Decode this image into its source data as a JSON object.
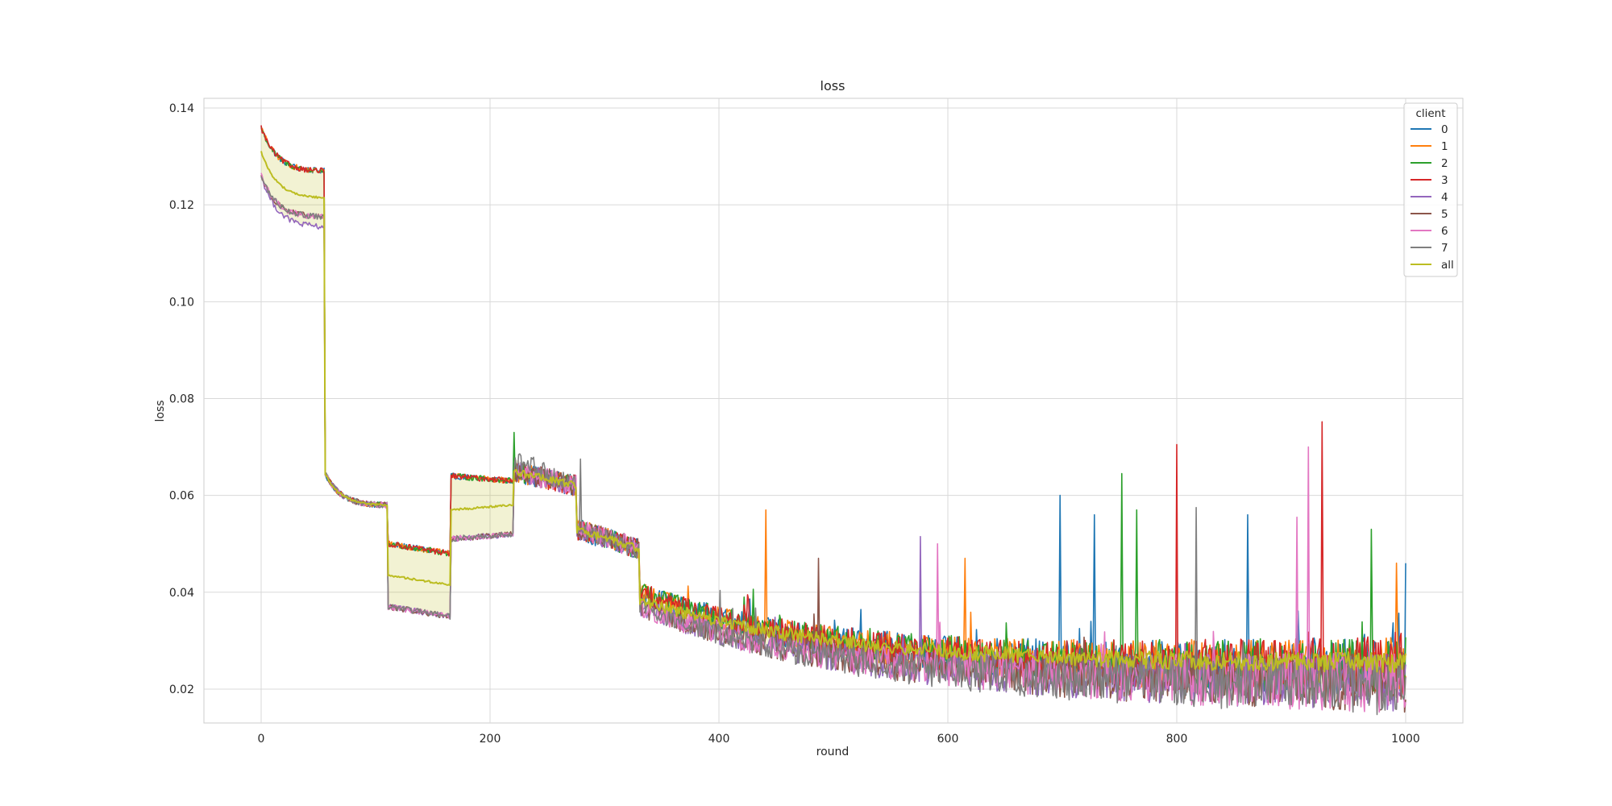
{
  "chart_data": {
    "type": "line",
    "title": "loss",
    "xlabel": "round",
    "ylabel": "loss",
    "xlim": [
      -50,
      1050
    ],
    "ylim": [
      0.013,
      0.142
    ],
    "xticks": [
      0,
      200,
      400,
      600,
      800,
      1000
    ],
    "yticks": [
      0.02,
      0.04,
      0.06,
      0.08,
      0.1,
      0.12,
      0.14
    ],
    "ytick_labels": [
      "0.02",
      "0.04",
      "0.06",
      "0.08",
      "0.10",
      "0.12",
      "0.14"
    ],
    "grid": true,
    "legend": {
      "title": "client",
      "placement": "top-right"
    },
    "series": [
      {
        "name": "0",
        "color": "#1f77b4",
        "group": "high",
        "phase_values": [
          0.136,
          0.127,
          0.0645,
          0.058,
          0.05,
          0.048,
          0.064,
          0.063,
          0.065,
          0.062,
          0.053,
          0.049,
          0.04,
          0.0245
        ],
        "spikes": [
          [
            698,
            0.06
          ],
          [
            728,
            0.056
          ],
          [
            862,
            0.056
          ],
          [
            1000,
            0.046
          ]
        ]
      },
      {
        "name": "1",
        "color": "#ff7f0e",
        "group": "high",
        "phase_values": [
          0.136,
          0.127,
          0.0645,
          0.058,
          0.05,
          0.048,
          0.064,
          0.063,
          0.065,
          0.062,
          0.053,
          0.049,
          0.04,
          0.0245
        ],
        "spikes": [
          [
            441,
            0.057
          ],
          [
            615,
            0.047
          ],
          [
            992,
            0.046
          ]
        ]
      },
      {
        "name": "2",
        "color": "#2ca02c",
        "group": "high",
        "phase_values": [
          0.136,
          0.127,
          0.0645,
          0.058,
          0.05,
          0.048,
          0.064,
          0.063,
          0.065,
          0.062,
          0.053,
          0.049,
          0.04,
          0.0245
        ],
        "spikes": [
          [
            221,
            0.073
          ],
          [
            752,
            0.0645
          ],
          [
            765,
            0.057
          ],
          [
            970,
            0.053
          ]
        ]
      },
      {
        "name": "3",
        "color": "#d62728",
        "group": "high",
        "phase_values": [
          0.136,
          0.127,
          0.0645,
          0.058,
          0.05,
          0.048,
          0.064,
          0.063,
          0.065,
          0.062,
          0.053,
          0.049,
          0.04,
          0.0245
        ],
        "spikes": [
          [
            800,
            0.0705
          ],
          [
            927,
            0.0752
          ]
        ]
      },
      {
        "name": "4",
        "color": "#9467bd",
        "group": "low",
        "phase_values": [
          0.126,
          0.1155,
          0.0645,
          0.058,
          0.037,
          0.035,
          0.051,
          0.052,
          0.065,
          0.062,
          0.053,
          0.049,
          0.037,
          0.0215
        ],
        "spikes": [
          [
            576,
            0.0515
          ]
        ]
      },
      {
        "name": "5",
        "color": "#8c564b",
        "group": "low",
        "phase_values": [
          0.126,
          0.1175,
          0.0645,
          0.058,
          0.037,
          0.035,
          0.051,
          0.052,
          0.065,
          0.062,
          0.053,
          0.049,
          0.037,
          0.0215
        ],
        "spikes": [
          [
            487,
            0.047
          ]
        ]
      },
      {
        "name": "6",
        "color": "#e377c2",
        "group": "low",
        "phase_values": [
          0.126,
          0.1175,
          0.0645,
          0.058,
          0.037,
          0.035,
          0.051,
          0.052,
          0.065,
          0.062,
          0.053,
          0.049,
          0.037,
          0.0215
        ],
        "spikes": [
          [
            591,
            0.05
          ],
          [
            905,
            0.0555
          ],
          [
            915,
            0.07
          ]
        ]
      },
      {
        "name": "7",
        "color": "#7f7f7f",
        "group": "low",
        "phase_values": [
          0.126,
          0.1175,
          0.0645,
          0.058,
          0.037,
          0.035,
          0.051,
          0.052,
          0.0675,
          0.062,
          0.053,
          0.049,
          0.037,
          0.021
        ],
        "spikes": [
          [
            279,
            0.0675
          ],
          [
            817,
            0.0575
          ]
        ]
      },
      {
        "name": "all",
        "color": "#bcbd22",
        "group": "mean",
        "phase_values": [
          0.131,
          0.1215,
          0.0645,
          0.058,
          0.0435,
          0.0415,
          0.057,
          0.058,
          0.065,
          0.062,
          0.053,
          0.049,
          0.0385,
          0.0255
        ],
        "spikes": []
      }
    ],
    "phase_rounds": [
      0,
      55,
      56,
      110,
      111,
      165,
      166,
      220,
      221,
      275,
      276,
      330,
      331,
      1000
    ],
    "band": {
      "color": "#bcbd22",
      "opacity": 0.2
    }
  }
}
